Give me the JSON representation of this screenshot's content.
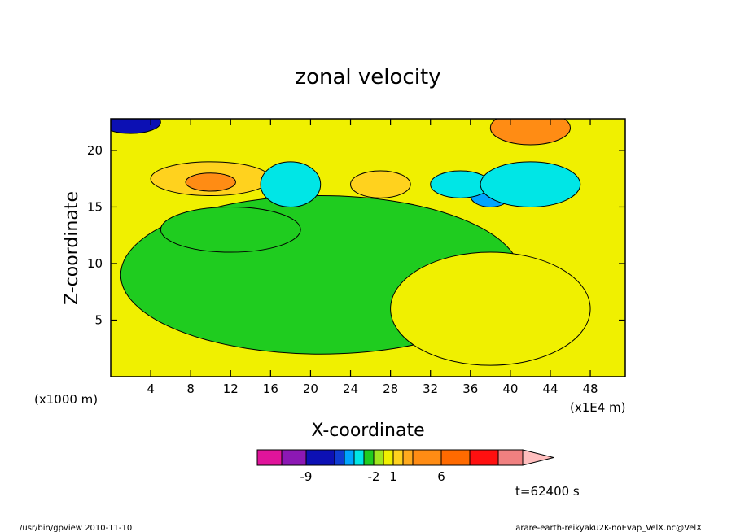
{
  "chart_data": {
    "type": "heatmap",
    "title": "zonal velocity",
    "xlabel": "X-coordinate",
    "ylabel": "Z-coordinate",
    "x_unit_label": "(x1E4 m)",
    "y_unit_label": "(x1000 m)",
    "xlim": [
      0,
      51.5
    ],
    "ylim": [
      0,
      22.8
    ],
    "x_ticks": [
      4,
      8,
      12,
      16,
      20,
      24,
      28,
      32,
      36,
      40,
      44,
      48
    ],
    "y_ticks": [
      5,
      10,
      15,
      20
    ],
    "colorbar": {
      "colors": [
        "#e0149b",
        "#8c18b4",
        "#0c10b4",
        "#0f3cd2",
        "#00a5ff",
        "#00e6e6",
        "#1fcc1f",
        "#a0e61f",
        "#f0f000",
        "#ffd21e",
        "#ffaa1e",
        "#ff8c14",
        "#ff6a00",
        "#ff1010",
        "#f08080"
      ],
      "extend_color": "#ffbebe",
      "labels": [
        {
          "text": "-9",
          "index": 2
        },
        {
          "text": "-2",
          "index": 7
        },
        {
          "text": "1",
          "index": 9
        },
        {
          "text": "6",
          "index": 12
        }
      ]
    },
    "regions": [
      {
        "level": 1,
        "color": "#1fcc1f",
        "center": [
          21,
          9
        ],
        "radius": [
          20,
          7
        ]
      },
      {
        "level": 2,
        "color": "#f0f000",
        "center": [
          38,
          6
        ],
        "radius": [
          10,
          5
        ]
      },
      {
        "level": 1,
        "color": "#1fcc1f",
        "center": [
          12,
          13
        ],
        "radius": [
          7,
          2
        ]
      },
      {
        "level": 3,
        "color": "#ffd21e",
        "center": [
          10,
          17.5
        ],
        "radius": [
          6,
          1.5
        ]
      },
      {
        "level": 4,
        "color": "#ff8c14",
        "center": [
          10,
          17.2
        ],
        "radius": [
          2.5,
          0.8
        ]
      },
      {
        "level": 0,
        "color": "#00e6e6",
        "center": [
          18,
          17
        ],
        "radius": [
          3,
          2
        ]
      },
      {
        "level": 0,
        "color": "#00a5ff",
        "center": [
          38,
          16
        ],
        "radius": [
          2,
          1
        ]
      },
      {
        "level": 3,
        "color": "#ffd21e",
        "center": [
          27,
          17
        ],
        "radius": [
          3,
          1.2
        ]
      },
      {
        "level": 0,
        "color": "#00e6e6",
        "center": [
          35,
          17
        ],
        "radius": [
          3,
          1.2
        ]
      },
      {
        "level": -1,
        "color": "#0c10b4",
        "center": [
          42,
          17
        ],
        "radius": [
          3.5,
          1.2
        ]
      },
      {
        "level": 0,
        "color": "#00e6e6",
        "center": [
          42,
          17
        ],
        "radius": [
          5,
          2
        ]
      },
      {
        "level": 4,
        "color": "#ff8c14",
        "center": [
          42,
          22
        ],
        "radius": [
          4,
          1.5
        ]
      },
      {
        "level": -1,
        "color": "#0c10b4",
        "center": [
          2,
          22.5
        ],
        "radius": [
          3,
          1
        ]
      }
    ]
  },
  "footer": {
    "time_label": "t=62400 s",
    "left_note": "/usr/bin/gpview   2010-11-10",
    "right_note": "arare-earth-reikyaku2K-noEvap_VelX.nc@VelX"
  }
}
